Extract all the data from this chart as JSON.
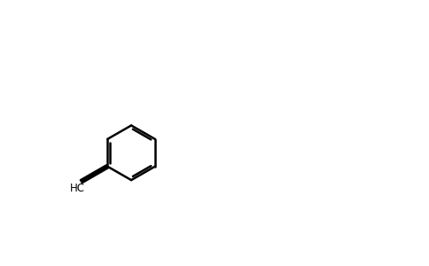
{
  "bg_color": "#ffffff",
  "figsize": [
    4.84,
    3.0
  ],
  "dpi": 100,
  "bond_color": "#000000",
  "N_color": "#0000ff",
  "O_color": "#ff0000",
  "lw": 1.8
}
